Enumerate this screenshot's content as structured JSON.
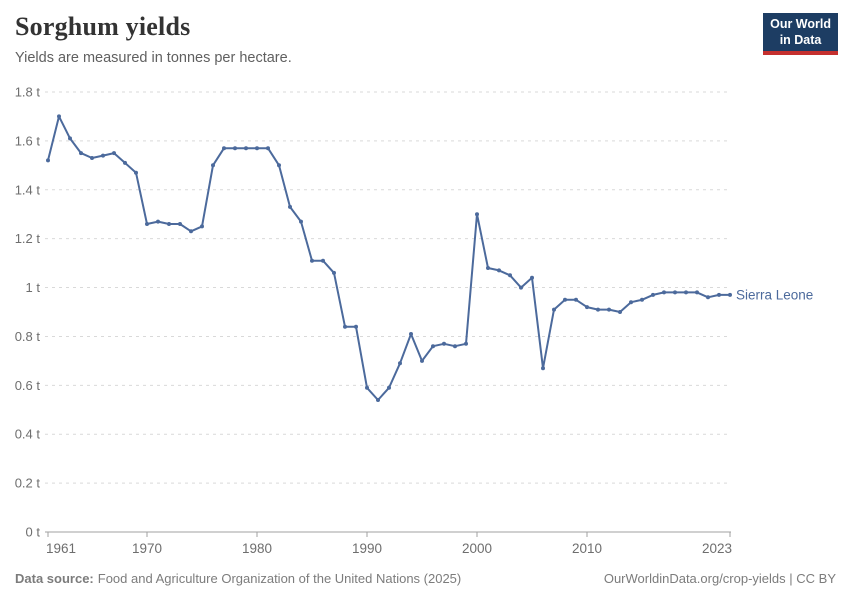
{
  "page": {
    "title": "Sorghum yields",
    "subtitle": "Yields are measured in tonnes per hectare.",
    "logo": {
      "line1": "Our World",
      "line2": "in Data"
    },
    "footer": {
      "source_label": "Data source:",
      "source_text": "Food and Agriculture Organization of the United Nations (2025)",
      "credit": "OurWorldinData.org/crop-yields | CC BY"
    }
  },
  "colors": {
    "line": "#4C6A9C",
    "entity_label": "#4C6A9C",
    "grid": "#d9d9d9",
    "axis": "#a1a1a1",
    "tick_text": "#6e6e6e",
    "logo_bg": "#1d3d63",
    "logo_red": "#c5302e"
  },
  "chart_data": {
    "type": "line",
    "title": "Sorghum yields",
    "subtitle": "Yields are measured in tonnes per hectare.",
    "unit": "tonnes per hectare",
    "xlim": [
      1961,
      2023
    ],
    "ylim": [
      0,
      1.8
    ],
    "grid": "horizontal-dashed",
    "legend_position": "line-end-label",
    "x_ticks": [
      {
        "value": 1961,
        "label": "1961"
      },
      {
        "value": 1970,
        "label": "1970"
      },
      {
        "value": 1980,
        "label": "1980"
      },
      {
        "value": 1990,
        "label": "1990"
      },
      {
        "value": 2000,
        "label": "2000"
      },
      {
        "value": 2010,
        "label": "2010"
      },
      {
        "value": 2023,
        "label": "2023"
      }
    ],
    "y_ticks": [
      {
        "value": 0,
        "label": "0 t"
      },
      {
        "value": 0.2,
        "label": "0.2 t"
      },
      {
        "value": 0.4,
        "label": "0.4 t"
      },
      {
        "value": 0.6,
        "label": "0.6 t"
      },
      {
        "value": 0.8,
        "label": "0.8 t"
      },
      {
        "value": 1,
        "label": "1 t"
      },
      {
        "value": 1.2,
        "label": "1.2 t"
      },
      {
        "value": 1.4,
        "label": "1.4 t"
      },
      {
        "value": 1.6,
        "label": "1.6 t"
      },
      {
        "value": 1.8,
        "label": "1.8 t"
      }
    ],
    "series": [
      {
        "name": "Sierra Leone",
        "color": "#4C6A9C",
        "x": [
          1961,
          1962,
          1963,
          1964,
          1965,
          1966,
          1967,
          1968,
          1969,
          1970,
          1971,
          1972,
          1973,
          1974,
          1975,
          1976,
          1977,
          1978,
          1979,
          1980,
          1981,
          1982,
          1983,
          1984,
          1985,
          1986,
          1987,
          1988,
          1989,
          1990,
          1991,
          1992,
          1993,
          1994,
          1995,
          1996,
          1997,
          1998,
          1999,
          2000,
          2001,
          2002,
          2003,
          2004,
          2005,
          2006,
          2007,
          2008,
          2009,
          2010,
          2011,
          2012,
          2013,
          2014,
          2015,
          2016,
          2017,
          2018,
          2019,
          2020,
          2021,
          2022,
          2023
        ],
        "values": [
          1.52,
          1.7,
          1.61,
          1.55,
          1.53,
          1.54,
          1.55,
          1.51,
          1.47,
          1.26,
          1.27,
          1.26,
          1.26,
          1.23,
          1.25,
          1.5,
          1.57,
          1.57,
          1.57,
          1.57,
          1.57,
          1.5,
          1.33,
          1.27,
          1.11,
          1.11,
          1.06,
          0.84,
          0.84,
          0.59,
          0.54,
          0.59,
          0.69,
          0.81,
          0.7,
          0.76,
          0.77,
          0.76,
          0.77,
          1.3,
          1.08,
          1.07,
          1.05,
          1.0,
          1.04,
          0.67,
          0.91,
          0.95,
          0.95,
          0.92,
          0.91,
          0.91,
          0.9,
          0.94,
          0.95,
          0.97,
          0.98,
          0.98,
          0.98,
          0.98,
          0.96,
          0.97,
          0.97
        ]
      }
    ]
  }
}
